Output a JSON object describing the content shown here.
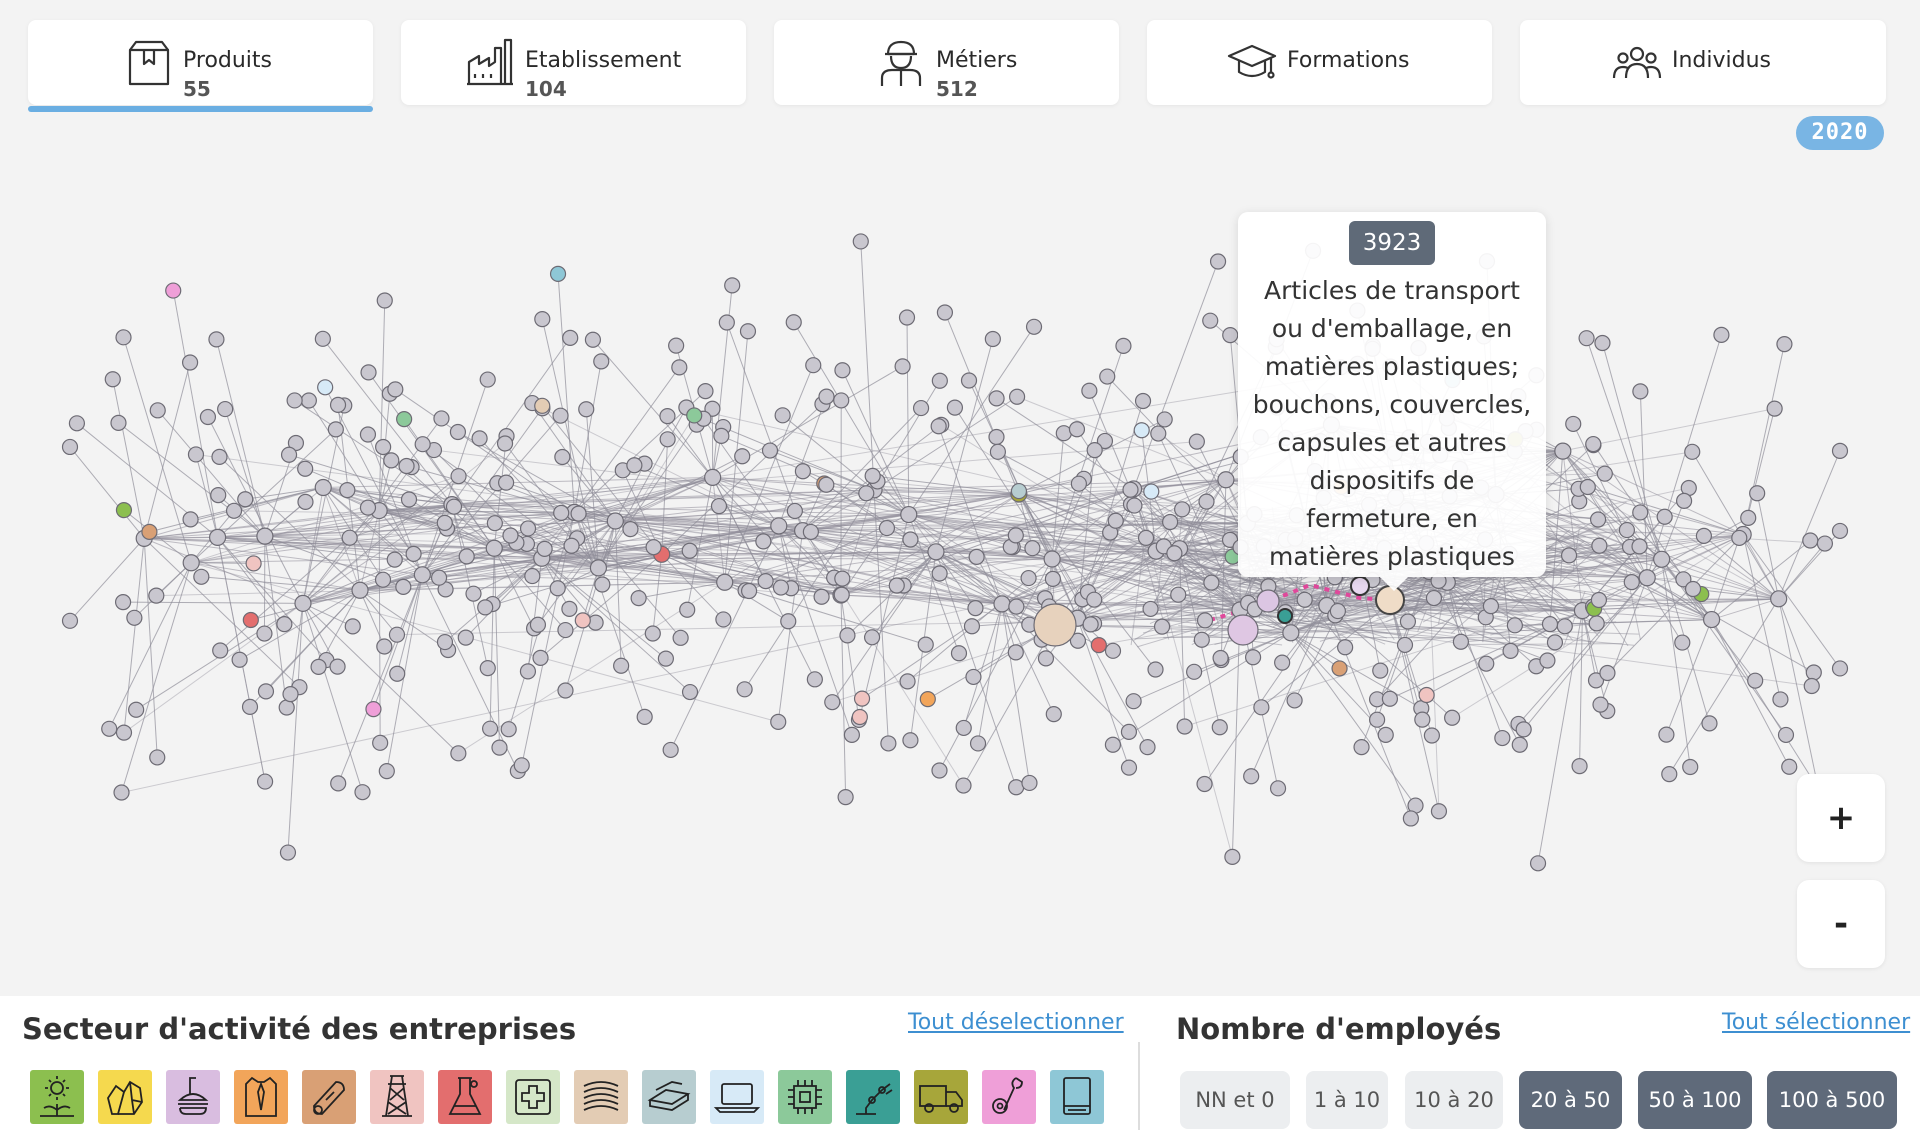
{
  "tabs": [
    {
      "label": "Produits",
      "count": "55",
      "icon": "box-icon",
      "active": true
    },
    {
      "label": "Etablissement",
      "count": "104",
      "icon": "factory-icon",
      "active": false
    },
    {
      "label": "Métiers",
      "count": "512",
      "icon": "worker-icon",
      "active": false
    },
    {
      "label": "Formations",
      "count": "",
      "icon": "graduation-cap-icon",
      "active": false
    },
    {
      "label": "Individus",
      "count": "",
      "icon": "people-icon",
      "active": false
    }
  ],
  "year": "2020",
  "tooltip": {
    "code": "3923",
    "description": "Articles de transport ou d'emballage, en matières plastiques; bouchons, couvercles, capsules et autres dispositifs de fermeture, en matières plastiques"
  },
  "zoom": {
    "in_label": "+",
    "out_label": "-"
  },
  "sectors": {
    "title": "Secteur d'activité des entreprises",
    "toggle_link": "Tout déselectionner",
    "items": [
      {
        "name": "agriculture",
        "icon": "plant-sun-icon",
        "color": "#8cbf4f"
      },
      {
        "name": "mining",
        "icon": "minerals-icon",
        "color": "#f5d94e"
      },
      {
        "name": "food",
        "icon": "food-icon",
        "color": "#d9bde0"
      },
      {
        "name": "textile",
        "icon": "clothing-icon",
        "color": "#f2a55a"
      },
      {
        "name": "wood",
        "icon": "wood-icon",
        "color": "#d9a075"
      },
      {
        "name": "energy",
        "icon": "pylon-icon",
        "color": "#f0c4c1"
      },
      {
        "name": "chemistry",
        "icon": "flask-icon",
        "color": "#e36e6e"
      },
      {
        "name": "pharma",
        "icon": "medical-cross-icon",
        "color": "#d5e7c8"
      },
      {
        "name": "materials",
        "icon": "layers-icon",
        "color": "#e3ccb4"
      },
      {
        "name": "metal",
        "icon": "metal-sheet-icon",
        "color": "#b7cdd0"
      },
      {
        "name": "electronics",
        "icon": "laptop-icon",
        "color": "#d7eaf7"
      },
      {
        "name": "components",
        "icon": "chip-icon",
        "color": "#8cc99a"
      },
      {
        "name": "machinery",
        "icon": "robot-arm-icon",
        "color": "#3a9f95"
      },
      {
        "name": "transport",
        "icon": "truck-icon",
        "color": "#a7a63a"
      },
      {
        "name": "repair",
        "icon": "tools-icon",
        "color": "#ef9fd8"
      },
      {
        "name": "other",
        "icon": "book-icon",
        "color": "#8ec7d6"
      }
    ]
  },
  "employees": {
    "title": "Nombre d'employés",
    "toggle_link": "Tout sélectionner",
    "ranges": [
      {
        "label": "NN et 0",
        "selected": false
      },
      {
        "label": "1 à 10",
        "selected": false
      },
      {
        "label": "10 à 20",
        "selected": false
      },
      {
        "label": "20 à 50",
        "selected": true
      },
      {
        "label": "50 à 100",
        "selected": true
      },
      {
        "label": "100 à 500",
        "selected": true
      }
    ]
  },
  "colors": {
    "accent": "#6aaee2",
    "node_default": "#c9c7cf",
    "node_stroke": "#6d6b74",
    "edge": "#8f8d99",
    "highlight": "#e0489b"
  }
}
